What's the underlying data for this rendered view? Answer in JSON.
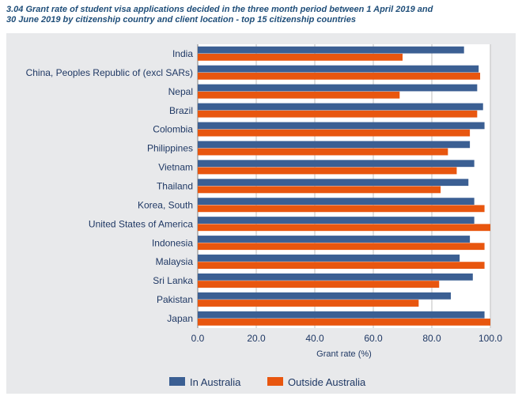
{
  "title_line1": "3.04 Grant rate of student visa applications decided in the three month period between 1 April 2019 and",
  "title_line2": "30 June 2019 by citizenship country and client location - top 15 citizenship countries",
  "chart_data": {
    "type": "bar",
    "orientation": "horizontal",
    "title": "3.04 Grant rate of student visa applications decided in the three month period between 1 April 2019 and 30 June 2019 by citizenship country and client location - top 15 citizenship countries",
    "xlabel": "Grant rate (%)",
    "ylabel": "",
    "xlim": [
      0,
      100
    ],
    "xticks": [
      "0.0",
      "20.0",
      "40.0",
      "60.0",
      "80.0",
      "100.0"
    ],
    "grid": true,
    "legend_position": "bottom",
    "categories": [
      "India",
      "China, Peoples Republic of (excl SARs)",
      "Nepal",
      "Brazil",
      "Colombia",
      "Philippines",
      "Vietnam",
      "Thailand",
      "Korea, South",
      "United States of America",
      "Indonesia",
      "Malaysia",
      "Sri Lanka",
      "Pakistan",
      "Japan"
    ],
    "series": [
      {
        "name": "In Australia",
        "color": "#3B5F93",
        "values": [
          91,
          96,
          95.5,
          97.5,
          98,
          93,
          94.5,
          92.5,
          94.5,
          94.5,
          93,
          89.5,
          94,
          86.5,
          98
        ]
      },
      {
        "name": "Outside Australia",
        "color": "#E8560F",
        "values": [
          70,
          96.5,
          69,
          95.5,
          93,
          85.5,
          88.5,
          83,
          98,
          100,
          98,
          98,
          82.5,
          75.5,
          100
        ]
      }
    ]
  }
}
